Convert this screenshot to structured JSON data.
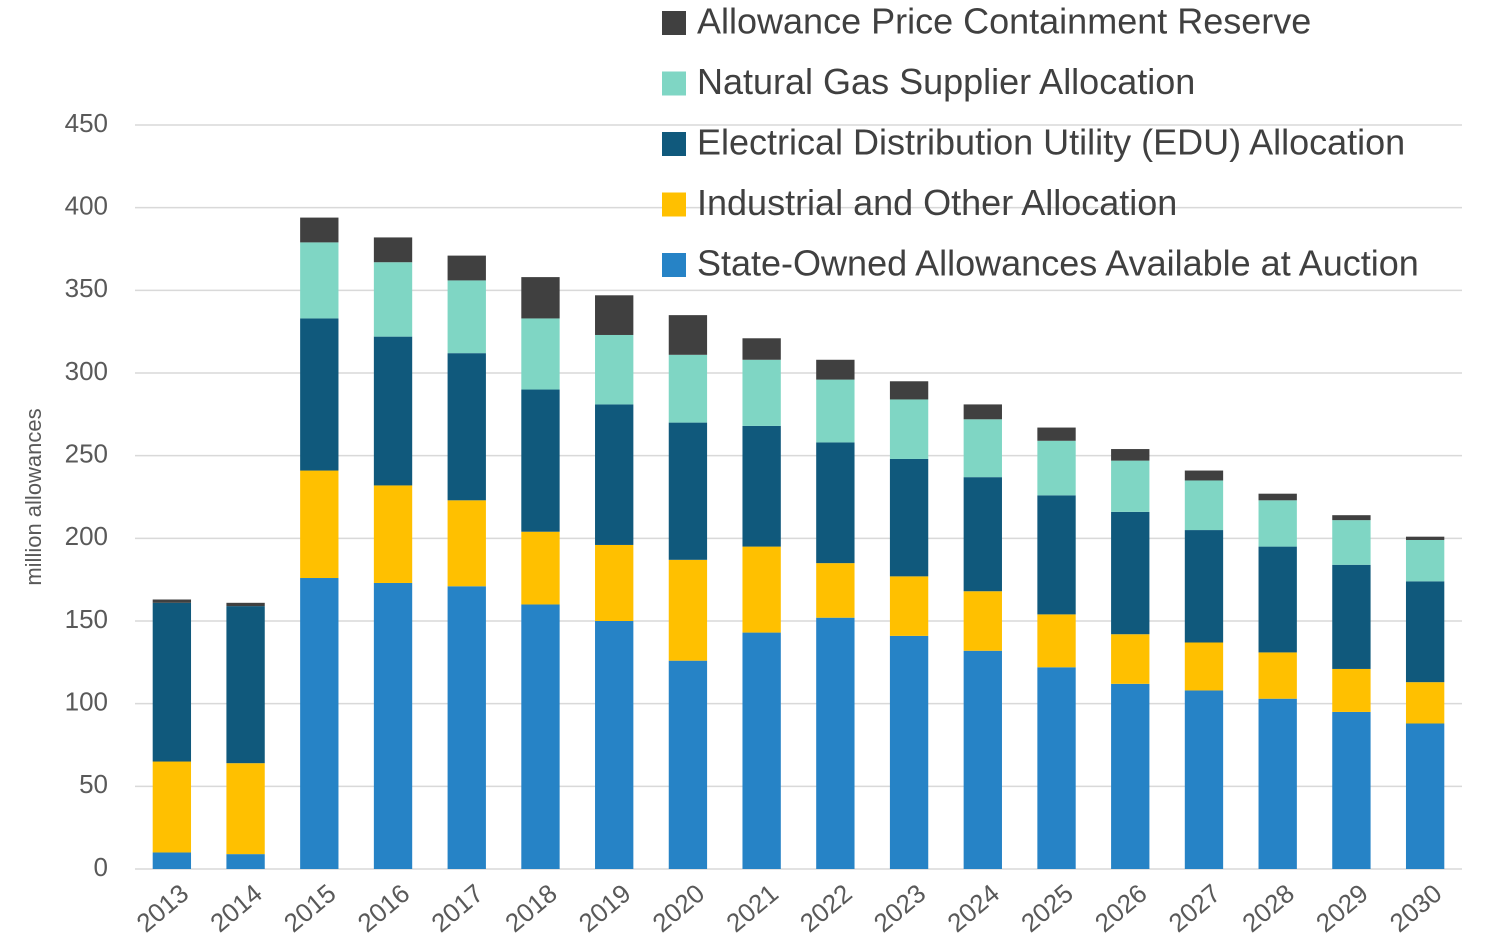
{
  "chart_data": {
    "type": "bar",
    "stacked": true,
    "y_label": "million allowances",
    "categories": [
      "2013",
      "2014",
      "2015",
      "2016",
      "2017",
      "2018",
      "2019",
      "2020",
      "2021",
      "2022",
      "2023",
      "2024",
      "2025",
      "2026",
      "2027",
      "2028",
      "2029",
      "2030"
    ],
    "series": [
      {
        "name": "State-Owned Allowances Available at Auction",
        "color": "#2683c6",
        "values": [
          10,
          9,
          176,
          173,
          171,
          160,
          150,
          126,
          143,
          152,
          141,
          132,
          122,
          112,
          108,
          103,
          95,
          88
        ]
      },
      {
        "name": "Industrial and Other Allocation",
        "color": "#ffc000",
        "values": [
          55,
          55,
          65,
          59,
          52,
          44,
          46,
          61,
          52,
          33,
          36,
          36,
          32,
          30,
          29,
          28,
          26,
          25
        ]
      },
      {
        "name": "Electrical Distribution Utility (EDU) Allocation",
        "color": "#10597c",
        "values": [
          96,
          95,
          92,
          90,
          89,
          86,
          85,
          83,
          73,
          73,
          71,
          69,
          72,
          74,
          68,
          64,
          63,
          61
        ]
      },
      {
        "name": "Natural Gas Supplier Allocation",
        "color": "#7fd6c4",
        "values": [
          0,
          0,
          46,
          45,
          44,
          43,
          42,
          41,
          40,
          38,
          36,
          35,
          33,
          31,
          30,
          28,
          27,
          25
        ]
      },
      {
        "name": "Allowance Price Containment Reserve",
        "color": "#404040",
        "values": [
          2,
          2,
          15,
          15,
          15,
          25,
          24,
          24,
          13,
          12,
          11,
          9,
          8,
          7,
          6,
          4,
          3,
          2
        ]
      }
    ],
    "ylim": [
      0,
      450
    ],
    "yticks": [
      0,
      50,
      100,
      150,
      200,
      250,
      300,
      350,
      400,
      450
    ],
    "grid": true,
    "legend": "top-right"
  }
}
